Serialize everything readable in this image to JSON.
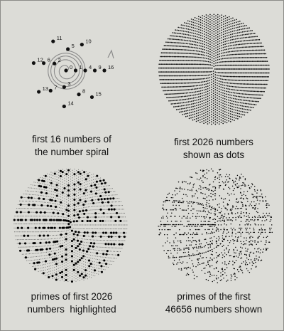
{
  "colors": {
    "background": "#dcdcd7",
    "ink": "#111111",
    "spiral_line": "#8a8a8a",
    "prime": "#000000",
    "composite": "#555555"
  },
  "panels": [
    {
      "id": "spiral",
      "caption": [
        "first 16 numbers of",
        "the number spiral"
      ],
      "count": 16
    },
    {
      "id": "dots",
      "caption": [
        "first 2026 numbers",
        "shown as dots"
      ],
      "count": 2026
    },
    {
      "id": "primes2026",
      "caption": [
        "primes of first 2026",
        "numbers  highlighted"
      ],
      "count": 2026
    },
    {
      "id": "primes46656",
      "caption": [
        "primes of the first",
        "46656 numbers shown"
      ],
      "count": 46656
    }
  ],
  "spiral_labels": [
    "0",
    "1",
    "2",
    "3",
    "4",
    "5",
    "6",
    "7",
    "8",
    "9",
    "10",
    "11",
    "12",
    "13",
    "14",
    "15",
    "16"
  ]
}
